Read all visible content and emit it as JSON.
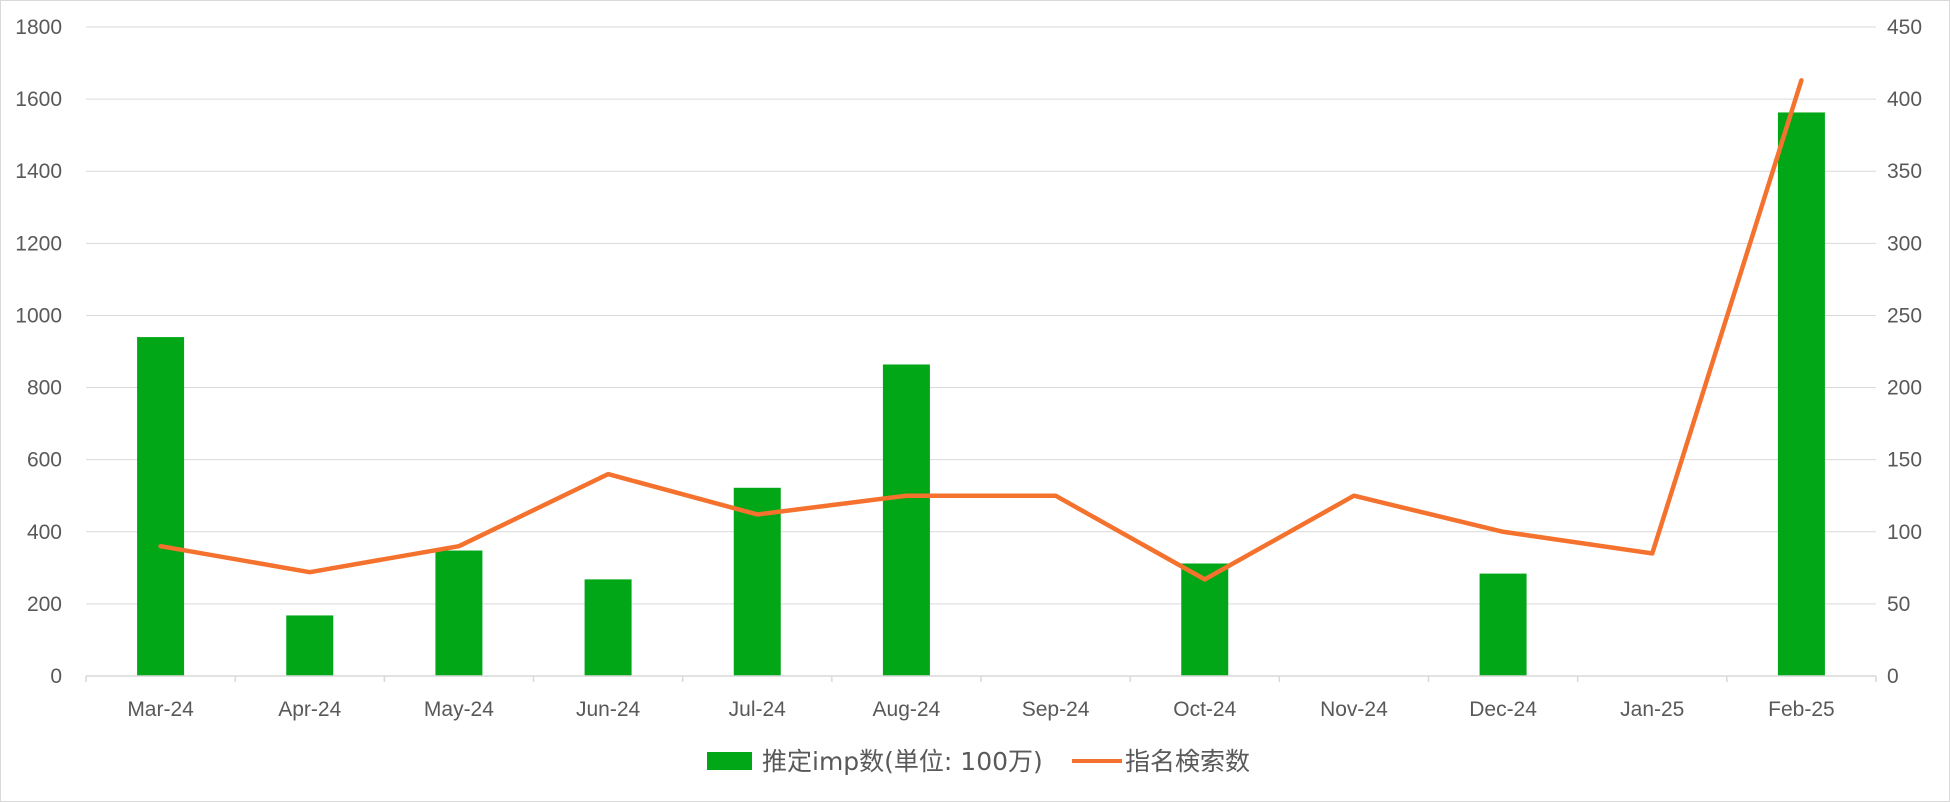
{
  "chart_data": {
    "type": "bar",
    "categories": [
      "Mar-24",
      "Apr-24",
      "May-24",
      "Jun-24",
      "Jul-24",
      "Aug-24",
      "Sep-24",
      "Oct-24",
      "Nov-24",
      "Dec-24",
      "Jan-25",
      "Feb-25"
    ],
    "series": [
      {
        "name": "推定imp数(単位: 100万)",
        "type": "bar",
        "axis": "left",
        "color": "#02a717",
        "values": [
          940,
          168,
          348,
          268,
          522,
          864,
          null,
          312,
          null,
          284,
          null,
          1563
        ]
      },
      {
        "name": "指名検索数",
        "type": "line",
        "axis": "right",
        "color": "#f4722e",
        "values": [
          90,
          72,
          90,
          140,
          112,
          125,
          125,
          67,
          125,
          100,
          85,
          413
        ]
      }
    ],
    "y_left": {
      "ylim": [
        0,
        1800
      ],
      "ticks": [
        0,
        200,
        400,
        600,
        800,
        1000,
        1200,
        1400,
        1600,
        1800
      ]
    },
    "y_right": {
      "ylim": [
        0,
        450
      ],
      "ticks": [
        0,
        50,
        100,
        150,
        200,
        250,
        300,
        350,
        400,
        450
      ]
    },
    "grid": true,
    "legend_position": "bottom"
  }
}
